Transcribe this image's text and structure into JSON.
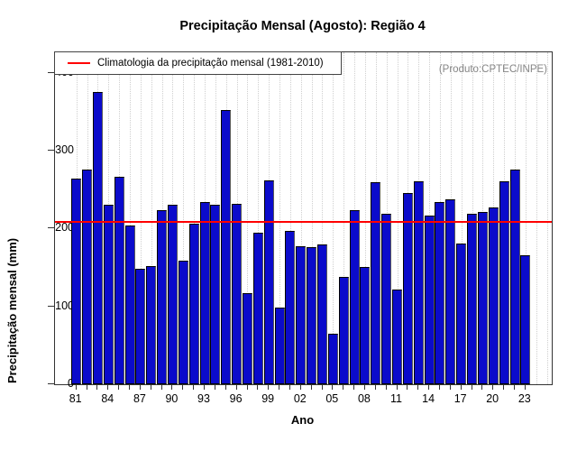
{
  "chart_data": {
    "type": "bar",
    "title": "Precipitação Mensal (Agosto): Região 4",
    "xlabel": "Ano",
    "ylabel": "Precipitação mensal (mm)",
    "annotation": "(Produto:CPTEC/INPE)",
    "legend": {
      "label": "Climatologia da precipitação mensal (1981-2010)",
      "line_color": "#ff0000",
      "position": "top-left"
    },
    "climatology": {
      "value": 208,
      "color": "#ff0000"
    },
    "bar_color": "#0b0bcb",
    "grid": "vertical-dotted",
    "ylim": [
      0,
      426
    ],
    "yticks": [
      0,
      100,
      200,
      300,
      400
    ],
    "x_label_every": 3,
    "x_tick_labels": [
      "81",
      "84",
      "87",
      "90",
      "93",
      "96",
      "99",
      "02",
      "05",
      "08",
      "11",
      "14",
      "17",
      "20",
      "23"
    ],
    "years": [
      1981,
      1982,
      1983,
      1984,
      1985,
      1986,
      1987,
      1988,
      1989,
      1990,
      1991,
      1992,
      1993,
      1994,
      1995,
      1996,
      1997,
      1998,
      1999,
      2000,
      2001,
      2002,
      2003,
      2004,
      2005,
      2006,
      2007,
      2008,
      2009,
      2010,
      2011,
      2012,
      2013,
      2014,
      2015,
      2016,
      2017,
      2018,
      2019,
      2020,
      2021,
      2022,
      2023
    ],
    "values": [
      264,
      275,
      375,
      231,
      266,
      204,
      148,
      152,
      223,
      231,
      159,
      206,
      234,
      231,
      352,
      232,
      117,
      194,
      262,
      98,
      197,
      177,
      176,
      180,
      65,
      138,
      223,
      151,
      259,
      219,
      122,
      245,
      260,
      217,
      234,
      237,
      181,
      219,
      221,
      227,
      260,
      276,
      166
    ]
  }
}
